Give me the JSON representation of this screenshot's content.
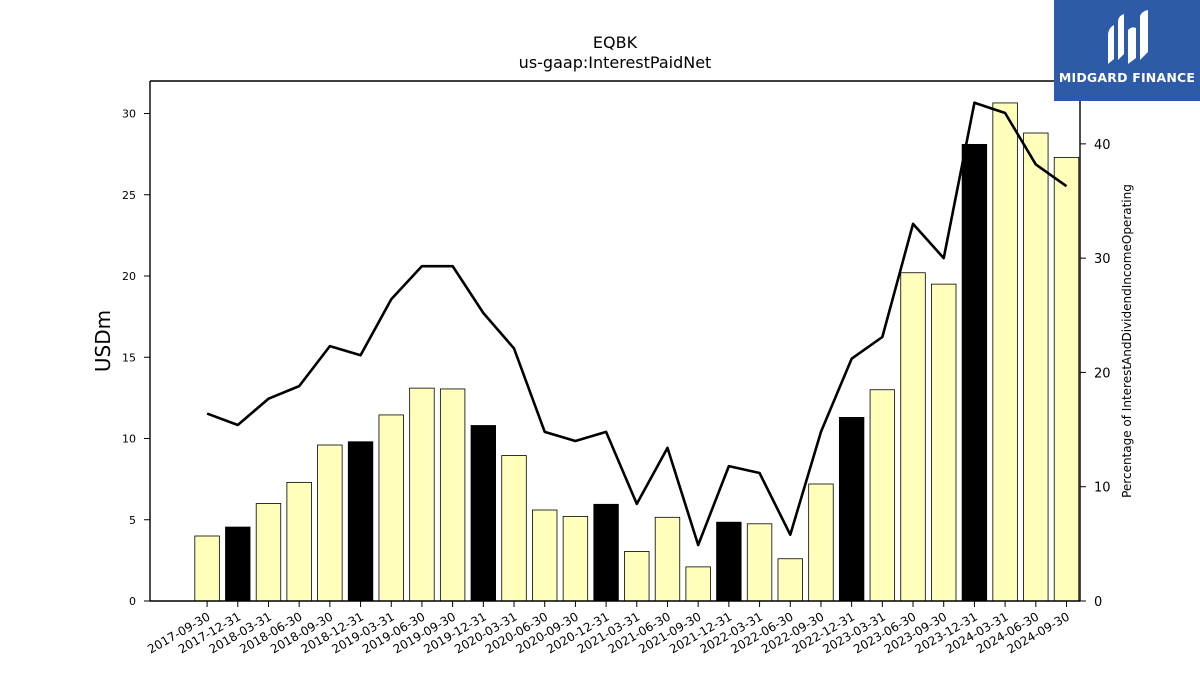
{
  "chart_data": {
    "type": "bar",
    "title": "EQBK",
    "subtitle": "us-gaap:InterestPaidNet",
    "ylabel": "USDm",
    "y2label": "Percentage of InterestAndDividendIncomeOperating",
    "ylim": [
      0,
      32
    ],
    "y2lim": [
      0,
      45.5
    ],
    "yticks": [
      0,
      5,
      10,
      15,
      20,
      25,
      30
    ],
    "y2ticks": [
      0,
      10,
      20,
      30,
      40
    ],
    "grid": false,
    "categories": [
      "2017-09-30",
      "2017-12-31",
      "2018-03-31",
      "2018-06-30",
      "2018-09-30",
      "2018-12-31",
      "2019-03-31",
      "2019-06-30",
      "2019-09-30",
      "2019-12-31",
      "2020-03-31",
      "2020-06-30",
      "2020-09-30",
      "2020-12-31",
      "2021-03-31",
      "2021-06-30",
      "2021-09-30",
      "2021-12-31",
      "2022-03-31",
      "2022-06-30",
      "2022-09-30",
      "2022-12-31",
      "2023-03-31",
      "2023-06-30",
      "2023-09-30",
      "2023-12-31",
      "2024-03-31",
      "2024-06-30",
      "2024-09-30"
    ],
    "series": [
      {
        "type": "bar",
        "axis": "left",
        "values": [
          4.0,
          4.55,
          6.0,
          7.3,
          9.6,
          9.8,
          11.45,
          13.1,
          13.05,
          10.8,
          8.95,
          5.6,
          5.2,
          5.95,
          3.05,
          5.15,
          2.1,
          4.85,
          4.75,
          2.6,
          7.2,
          11.3,
          13.0,
          20.2,
          19.5,
          28.1,
          30.65,
          28.8,
          27.3
        ],
        "highlight": [
          false,
          true,
          false,
          false,
          false,
          true,
          false,
          false,
          false,
          true,
          false,
          false,
          false,
          true,
          false,
          false,
          false,
          true,
          false,
          false,
          false,
          true,
          false,
          false,
          false,
          true,
          false,
          false,
          false
        ],
        "color": "#ffffbb",
        "highlight_color": "#000000"
      },
      {
        "type": "line",
        "axis": "right",
        "values": [
          16.4,
          15.4,
          17.7,
          18.8,
          22.3,
          21.5,
          26.4,
          29.3,
          29.3,
          25.2,
          22.1,
          14.8,
          14.0,
          14.8,
          8.5,
          13.4,
          4.9,
          11.8,
          11.2,
          5.8,
          14.8,
          21.2,
          23.1,
          33.0,
          30.0,
          43.6,
          42.7,
          38.2,
          36.3
        ],
        "color": "#000000"
      }
    ]
  },
  "branding": {
    "name": "MIDGARD FINANCE",
    "background": "#2d5ba8"
  }
}
